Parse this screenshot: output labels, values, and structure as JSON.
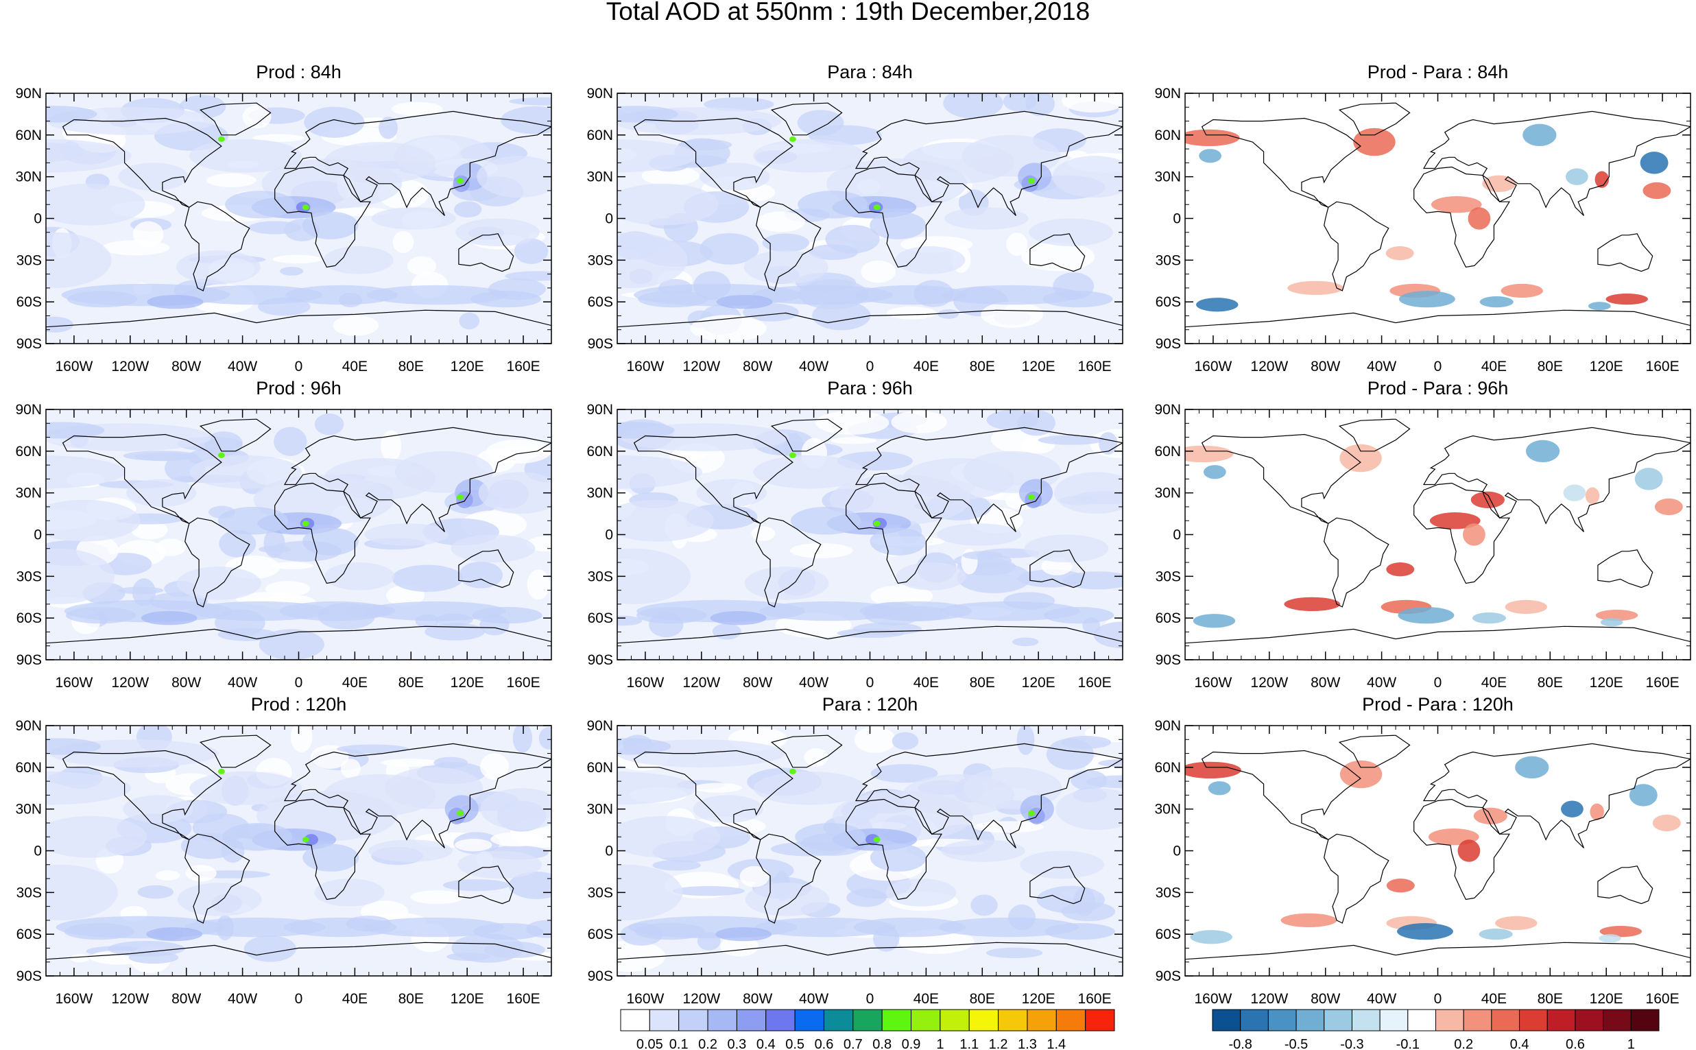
{
  "title": "Total AOD at 550nm : 19th December,2018",
  "lat_labels": [
    "90N",
    "60N",
    "30N",
    "0",
    "30S",
    "60S",
    "90S"
  ],
  "lon_labels": [
    "160W",
    "120W",
    "80W",
    "40W",
    "0",
    "40E",
    "80E",
    "120E",
    "160E"
  ],
  "panels": [
    {
      "title": "Prod : 84h",
      "kind": "aod"
    },
    {
      "title": "Para : 84h",
      "kind": "aod"
    },
    {
      "title": "Prod - Para : 84h",
      "kind": "diff"
    },
    {
      "title": "Prod : 96h",
      "kind": "aod"
    },
    {
      "title": "Para : 96h",
      "kind": "aod"
    },
    {
      "title": "Prod - Para : 96h",
      "kind": "diff"
    },
    {
      "title": "Prod : 120h",
      "kind": "aod"
    },
    {
      "title": "Para : 120h",
      "kind": "aod"
    },
    {
      "title": "Prod - Para : 120h",
      "kind": "diff"
    }
  ],
  "aod_colorbar": {
    "labels": [
      "0.05",
      "0.1",
      "0.2",
      "0.3",
      "0.4",
      "0.5",
      "0.6",
      "0.7",
      "0.8",
      "0.9",
      "1",
      "1.1",
      "1.2",
      "1.3",
      "1.4"
    ],
    "colors": [
      "#ffffff",
      "#dce4fb",
      "#c3d1f8",
      "#a7b9f5",
      "#8d9df2",
      "#6e78ee",
      "#0a6af0",
      "#0b8c98",
      "#18a65e",
      "#5ef511",
      "#95f00d",
      "#c3f00b",
      "#f5f50a",
      "#f5c80a",
      "#f5a20a",
      "#f57b0a",
      "#f5240a"
    ]
  },
  "diff_colorbar": {
    "labels": [
      "-0.8",
      "-0.5",
      "-0.3",
      "-0.1",
      "0.2",
      "0.4",
      "0.6",
      "1"
    ],
    "colors": [
      "#0b5192",
      "#2a74b2",
      "#4b92c4",
      "#71aed4",
      "#9ccae2",
      "#c4e1ef",
      "#e6f3fa",
      "#ffffff",
      "#f7b8a6",
      "#f2917c",
      "#ea6a56",
      "#db3d32",
      "#c01e26",
      "#9c1020",
      "#760a18",
      "#530410"
    ]
  }
}
